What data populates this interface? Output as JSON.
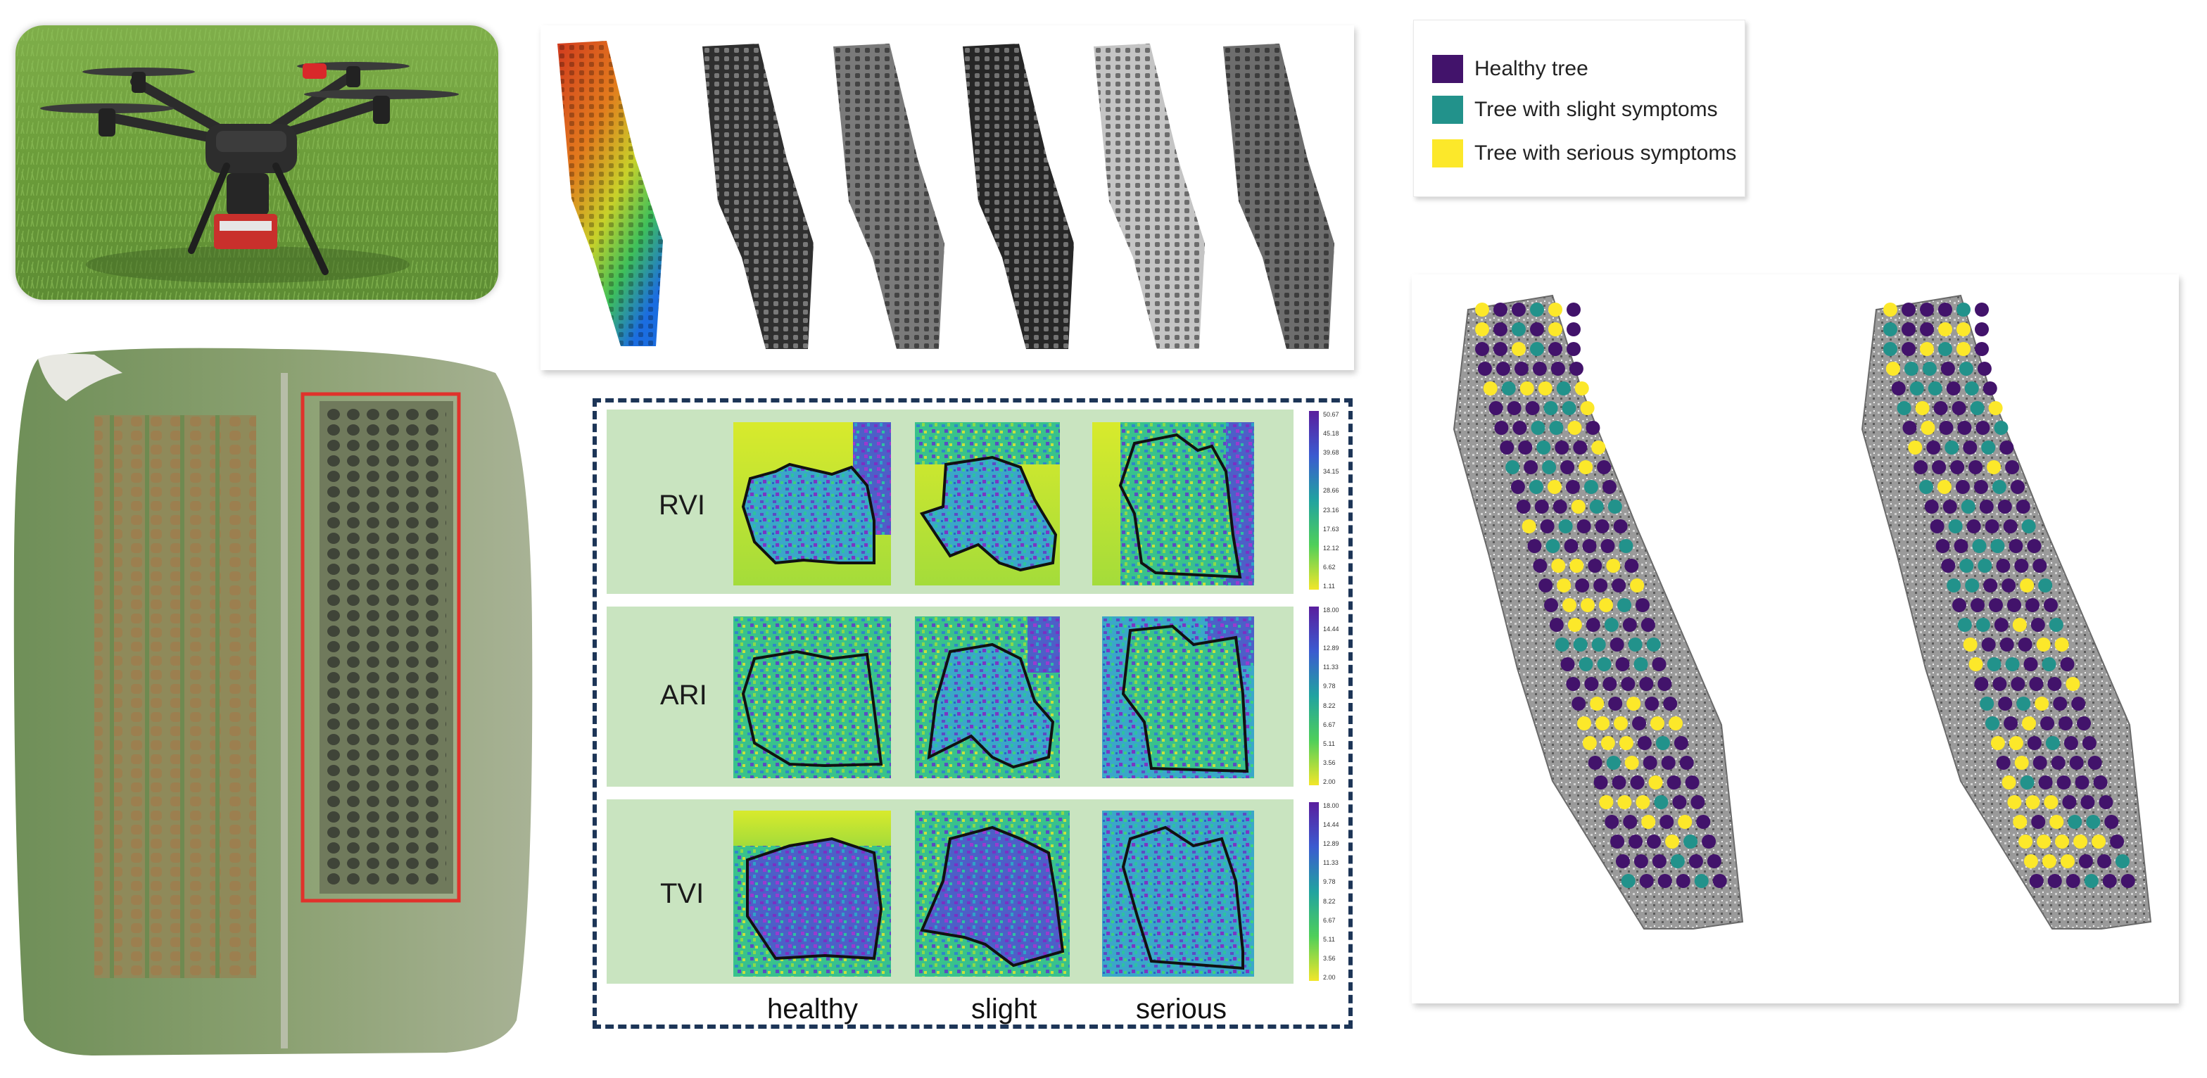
{
  "legend": {
    "items": [
      {
        "label": "Healthy tree",
        "color": "#42136b"
      },
      {
        "label": "Tree with slight symptoms",
        "color": "#22928b"
      },
      {
        "label": "Tree with serious symptoms",
        "color": "#fce82a"
      }
    ]
  },
  "indices": {
    "rows": [
      {
        "label": "RVI",
        "ticks": [
          "50.67",
          "45.18",
          "39.68",
          "34.15",
          "28.66",
          "23.16",
          "17.63",
          "12.12",
          "6.62",
          "1.11"
        ]
      },
      {
        "label": "ARI",
        "ticks": [
          "18.00",
          "14.44",
          "12.89",
          "11.33",
          "9.78",
          "8.22",
          "6.67",
          "5.11",
          "3.56",
          "2.00"
        ]
      },
      {
        "label": "TVI",
        "ticks": [
          "18.00",
          "14.44",
          "12.89",
          "11.33",
          "9.78",
          "8.22",
          "6.67",
          "5.11",
          "3.56",
          "2.00"
        ]
      }
    ],
    "columns": [
      "healthy",
      "slight",
      "serious"
    ]
  },
  "colors": {
    "healthy": "#42136b",
    "slight": "#22928b",
    "serious": "#fce82a",
    "panel_bg": "#c9e4c0",
    "dash_border": "#1d3557",
    "roi_box": "#e0322b"
  }
}
